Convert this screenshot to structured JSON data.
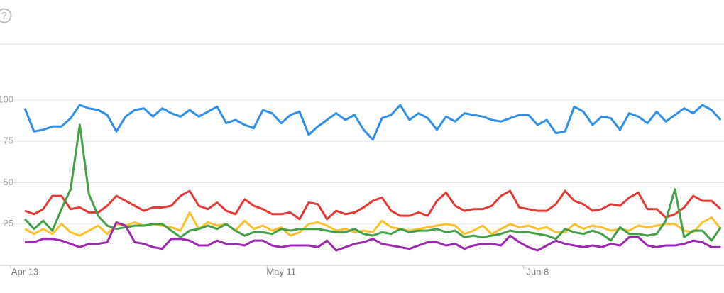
{
  "help_icon": "?",
  "chart_data": {
    "type": "line",
    "categories": [
      "Apr 13",
      null,
      null,
      null,
      null,
      null,
      null,
      null,
      null,
      null,
      null,
      null,
      null,
      null,
      null,
      null,
      null,
      null,
      null,
      null,
      null,
      null,
      null,
      null,
      null,
      null,
      null,
      null,
      "May 11",
      null,
      null,
      null,
      null,
      null,
      null,
      null,
      null,
      null,
      null,
      null,
      null,
      null,
      null,
      null,
      null,
      null,
      null,
      null,
      null,
      null,
      null,
      null,
      null,
      null,
      null,
      null,
      "Jun 8",
      null,
      null,
      null,
      null,
      null,
      null,
      null,
      null,
      null,
      null,
      null,
      null,
      null,
      null,
      null,
      null,
      null,
      null,
      null,
      null
    ],
    "series": [
      {
        "color": "#2e8ee8",
        "values": [
          95,
          81,
          82,
          84,
          84,
          89,
          97,
          95,
          94,
          91,
          81,
          90,
          94,
          95,
          90,
          95,
          92,
          90,
          94,
          90,
          93,
          96,
          86,
          88,
          85,
          83,
          94,
          92,
          86,
          91,
          93,
          79,
          84,
          88,
          92,
          88,
          91,
          82,
          76,
          89,
          91,
          97,
          88,
          92,
          89,
          82,
          90,
          87,
          92,
          91,
          90,
          88,
          87,
          89,
          91,
          91,
          85,
          88,
          80,
          81,
          96,
          93,
          85,
          90,
          89,
          82,
          92,
          90,
          86,
          93,
          87,
          91,
          95,
          92,
          97,
          94,
          88
        ]
      },
      {
        "color": "#e53935",
        "values": [
          33,
          31,
          34,
          42,
          42,
          34,
          35,
          32,
          32,
          36,
          42,
          39,
          36,
          33,
          35,
          35,
          36,
          42,
          45,
          36,
          34,
          38,
          33,
          31,
          40,
          36,
          34,
          31,
          31,
          32,
          28,
          38,
          37,
          28,
          33,
          31,
          32,
          35,
          39,
          41,
          33,
          30,
          30,
          32,
          30,
          39,
          44,
          36,
          33,
          34,
          34,
          36,
          42,
          45,
          35,
          34,
          33,
          33,
          37,
          45,
          39,
          37,
          33,
          34,
          37,
          36,
          41,
          44,
          34,
          34,
          29,
          31,
          35,
          42,
          39,
          39,
          34
        ]
      },
      {
        "color": "#fbc02d",
        "values": [
          22,
          19,
          22,
          19,
          25,
          20,
          18,
          21,
          24,
          19,
          25,
          24,
          26,
          24,
          25,
          24,
          23,
          21,
          32,
          22,
          26,
          24,
          25,
          21,
          27,
          22,
          24,
          21,
          23,
          18,
          20,
          25,
          26,
          24,
          21,
          22,
          20,
          21,
          20,
          27,
          23,
          22,
          21,
          22,
          23,
          24,
          25,
          24,
          19,
          21,
          24,
          19,
          22,
          25,
          23,
          24,
          22,
          23,
          20,
          20,
          25,
          22,
          24,
          23,
          21,
          22,
          21,
          24,
          23,
          24,
          25,
          25,
          21,
          20,
          26,
          29,
          22
        ]
      },
      {
        "color": "#43a047",
        "values": [
          28,
          22,
          27,
          21,
          34,
          46,
          85,
          43,
          30,
          24,
          22,
          23,
          24,
          24,
          25,
          25,
          21,
          17,
          21,
          22,
          24,
          22,
          25,
          21,
          18,
          20,
          20,
          19,
          22,
          21,
          22,
          22,
          22,
          21,
          20,
          20,
          22,
          19,
          18,
          20,
          19,
          22,
          20,
          21,
          21,
          22,
          20,
          21,
          17,
          18,
          17,
          18,
          19,
          21,
          20,
          20,
          19,
          18,
          16,
          22,
          20,
          19,
          21,
          19,
          15,
          23,
          19,
          19,
          18,
          19,
          27,
          46,
          17,
          21,
          21,
          15,
          23
        ]
      },
      {
        "color": "#9c27b0",
        "values": [
          14,
          14,
          16,
          16,
          15,
          13,
          11,
          13,
          13,
          14,
          26,
          24,
          14,
          13,
          11,
          10,
          16,
          16,
          15,
          12,
          12,
          15,
          13,
          13,
          12,
          15,
          15,
          12,
          11,
          12,
          12,
          12,
          11,
          15,
          9,
          11,
          13,
          14,
          16,
          13,
          12,
          11,
          10,
          12,
          14,
          14,
          12,
          13,
          10,
          12,
          13,
          13,
          12,
          18,
          14,
          11,
          9,
          12,
          15,
          13,
          12,
          11,
          12,
          11,
          13,
          12,
          17,
          17,
          12,
          11,
          12,
          12,
          13,
          15,
          14,
          11,
          11
        ]
      }
    ],
    "ylim": [
      0,
      100
    ],
    "yticks": [
      25,
      50,
      75,
      100
    ],
    "grid": true
  }
}
